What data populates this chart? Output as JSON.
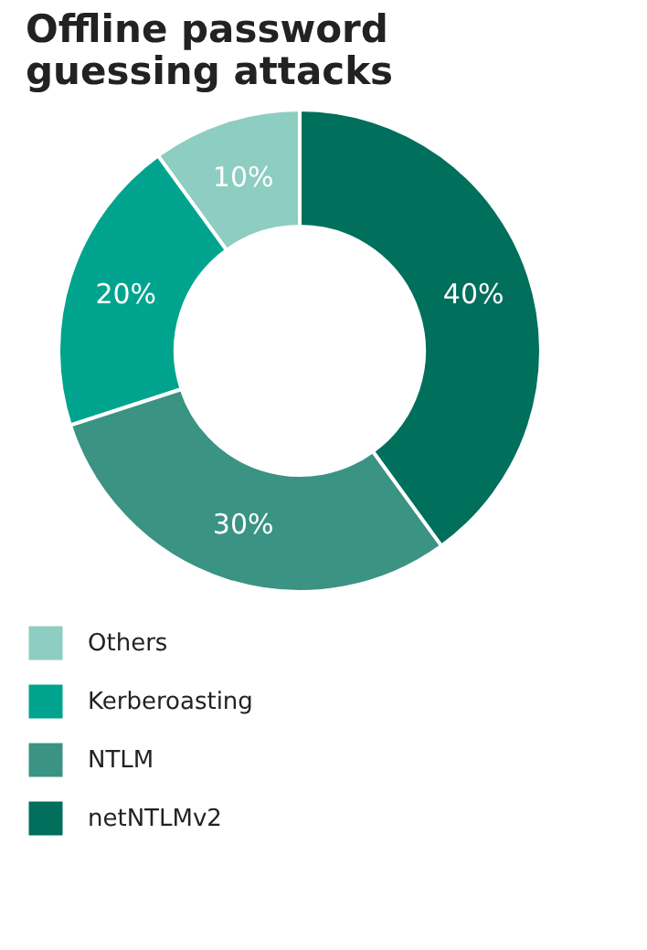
{
  "chart_data": {
    "type": "donut",
    "title": "Offline password\nguessing attacks",
    "categories": [
      "Others",
      "Kerberoasting",
      "NTLM",
      "netNTLMv2"
    ],
    "values": [
      10,
      20,
      30,
      40
    ],
    "colors": [
      "#8ecdc1",
      "#00a48e",
      "#3a9383",
      "#006f5b"
    ],
    "value_labels": [
      "10%",
      "20%",
      "30%",
      "40%"
    ],
    "legend": "bottom"
  }
}
